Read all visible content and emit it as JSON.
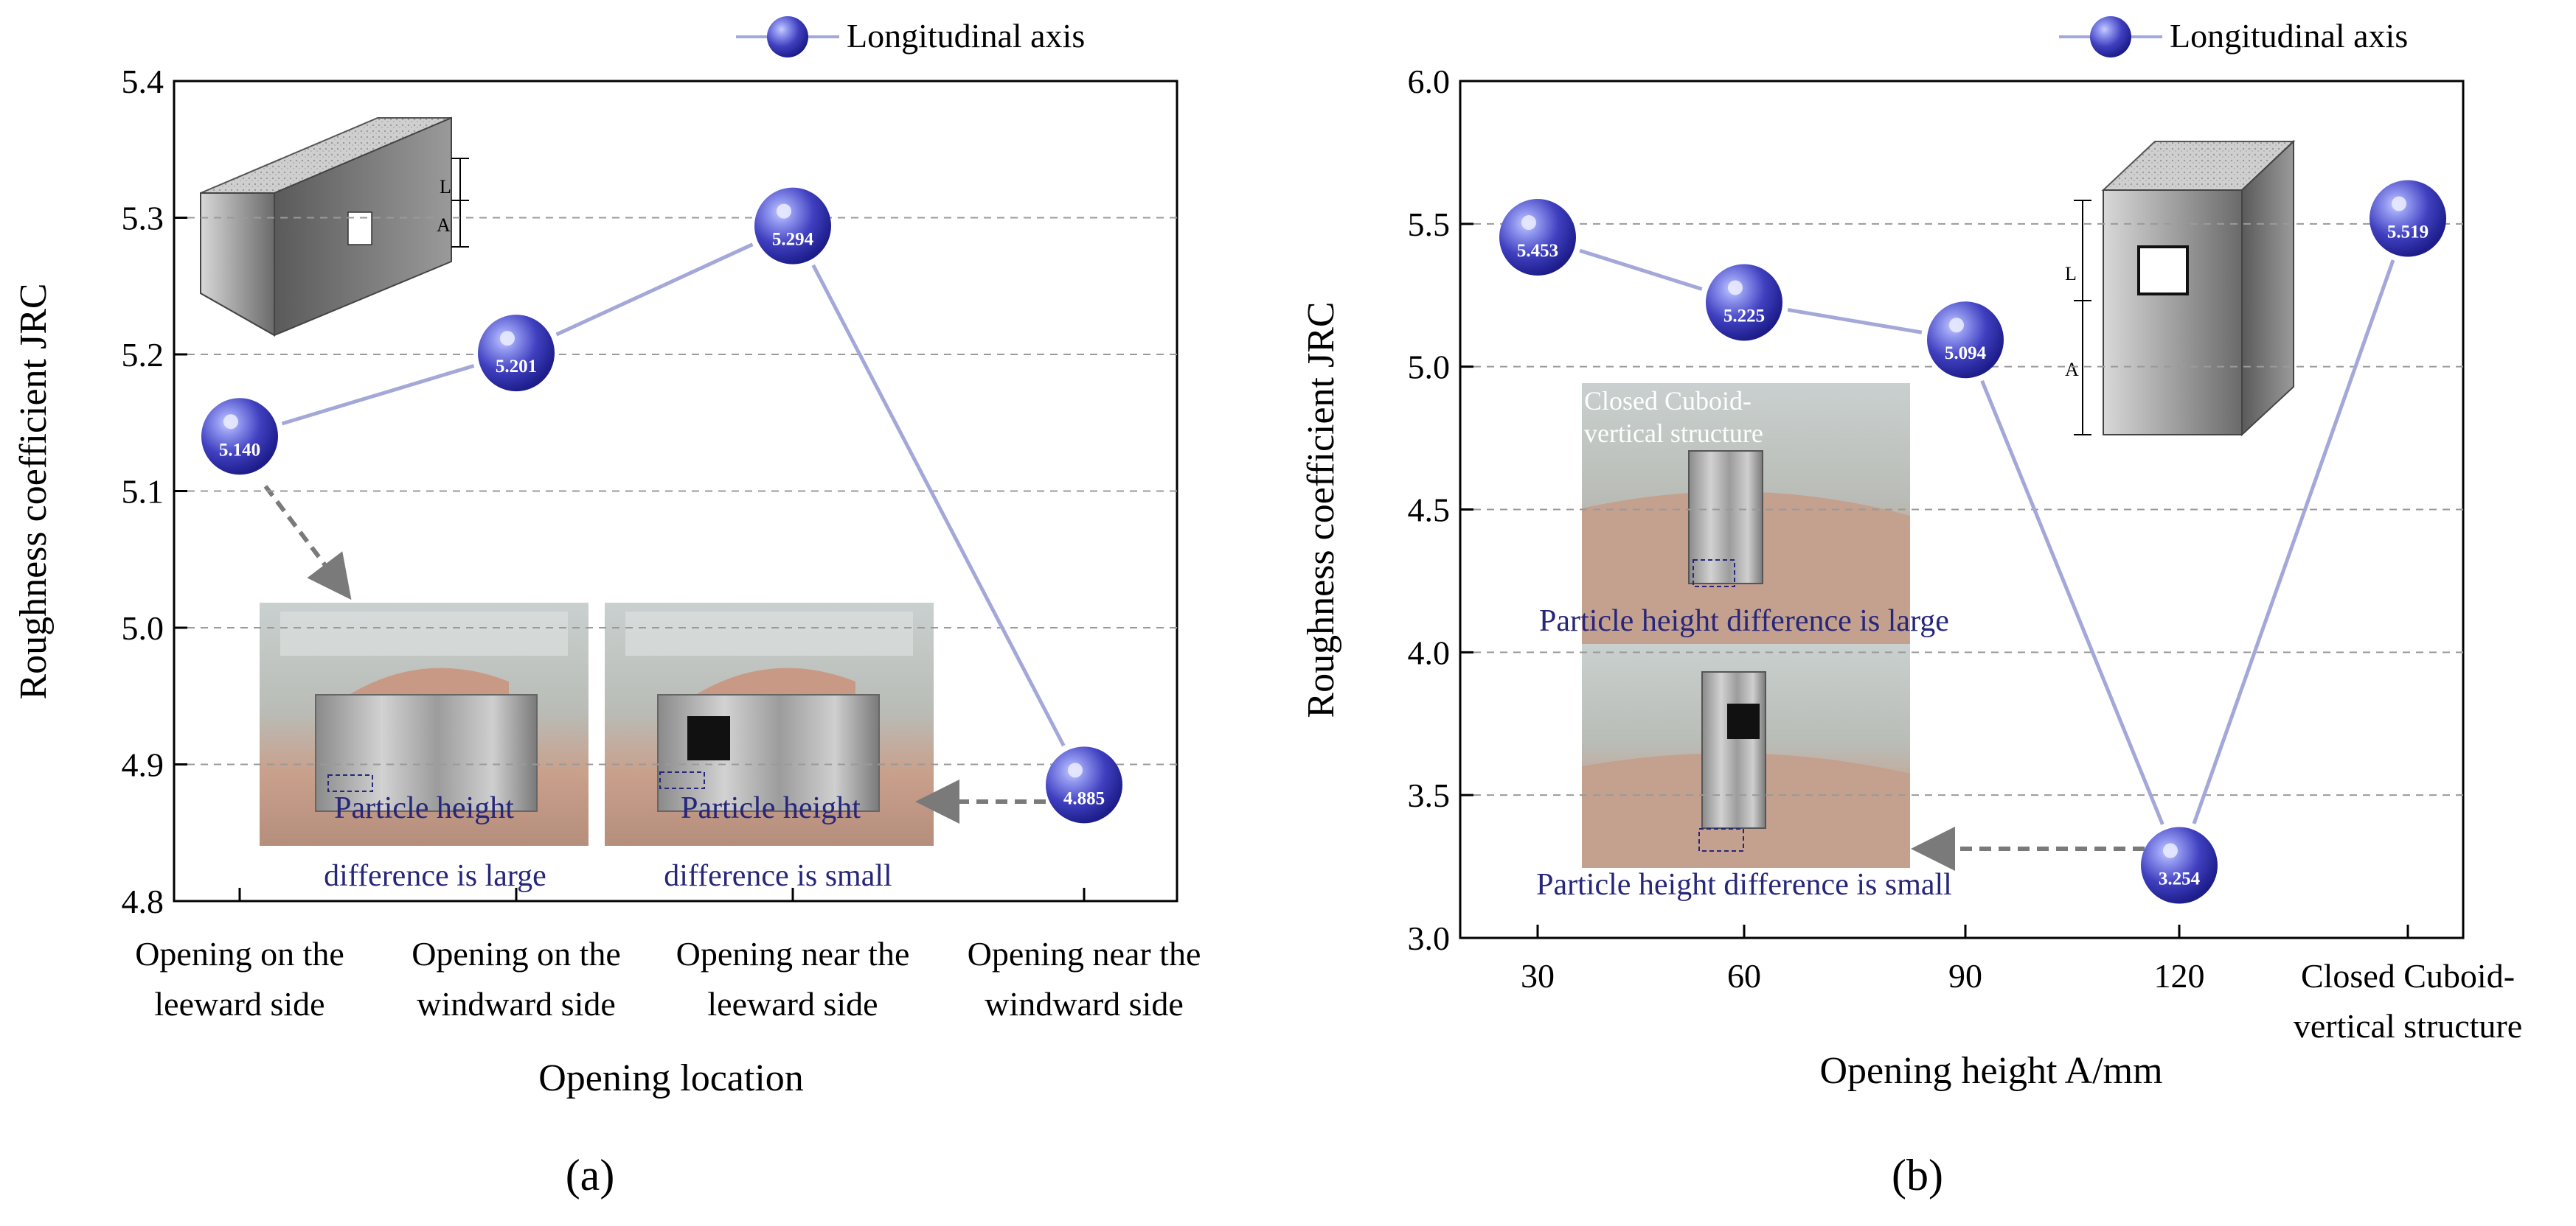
{
  "chart_data": [
    {
      "type": "line",
      "panel_label": "(a)",
      "legend": "Longitudinal axis",
      "xlabel": "Opening location",
      "ylabel": "Roughness coefficient JRC",
      "ylim": [
        4.8,
        5.4
      ],
      "yticks": [
        "4.8",
        "4.9",
        "5.0",
        "5.1",
        "5.2",
        "5.3",
        "5.4"
      ],
      "categories": [
        [
          "Opening on the",
          "leeward side"
        ],
        [
          "Opening on the",
          "windward side"
        ],
        [
          "Opening near the",
          "leeward side"
        ],
        [
          "Opening near the",
          "windward side"
        ]
      ],
      "values": [
        5.14,
        5.201,
        5.294,
        4.885
      ],
      "point_labels": [
        "5.140",
        "5.201",
        "5.294",
        "4.885"
      ],
      "diagram_labels": {
        "l": "L",
        "a": "A"
      },
      "photos": [
        {
          "caption": [
            "Particle height",
            "difference is large"
          ]
        },
        {
          "caption": [
            "Particle height",
            "difference is small"
          ]
        }
      ]
    },
    {
      "type": "line",
      "panel_label": "(b)",
      "legend": "Longitudinal axis",
      "xlabel": "Opening height A/mm",
      "ylabel": "Roughness coefficient JRC",
      "ylim": [
        3.0,
        6.0
      ],
      "yticks": [
        "3.0",
        "3.5",
        "4.0",
        "4.5",
        "5.0",
        "5.5",
        "6.0"
      ],
      "categories": [
        [
          "30"
        ],
        [
          "60"
        ],
        [
          "90"
        ],
        [
          "120"
        ],
        [
          "Closed Cuboid-",
          "vertical structure"
        ]
      ],
      "values": [
        5.453,
        5.225,
        5.094,
        3.254,
        5.519
      ],
      "point_labels": [
        "5.453",
        "5.225",
        "5.094",
        "3.254",
        "5.519"
      ],
      "diagram_labels": {
        "l": "L",
        "a": "A"
      },
      "photos": [
        {
          "title": [
            "Closed Cuboid-",
            "vertical structure"
          ],
          "caption": [
            "Particle height difference is large"
          ]
        },
        {
          "caption": [
            "Particle height difference is small"
          ]
        }
      ]
    }
  ],
  "colors": {
    "line": "#a3a8d8",
    "sphere_dark": "#2a2aa8",
    "sphere_light": "#8f95ee",
    "grid": "#9a9a9a",
    "arrow": "#7a7a7a",
    "caption": "#26267a"
  }
}
